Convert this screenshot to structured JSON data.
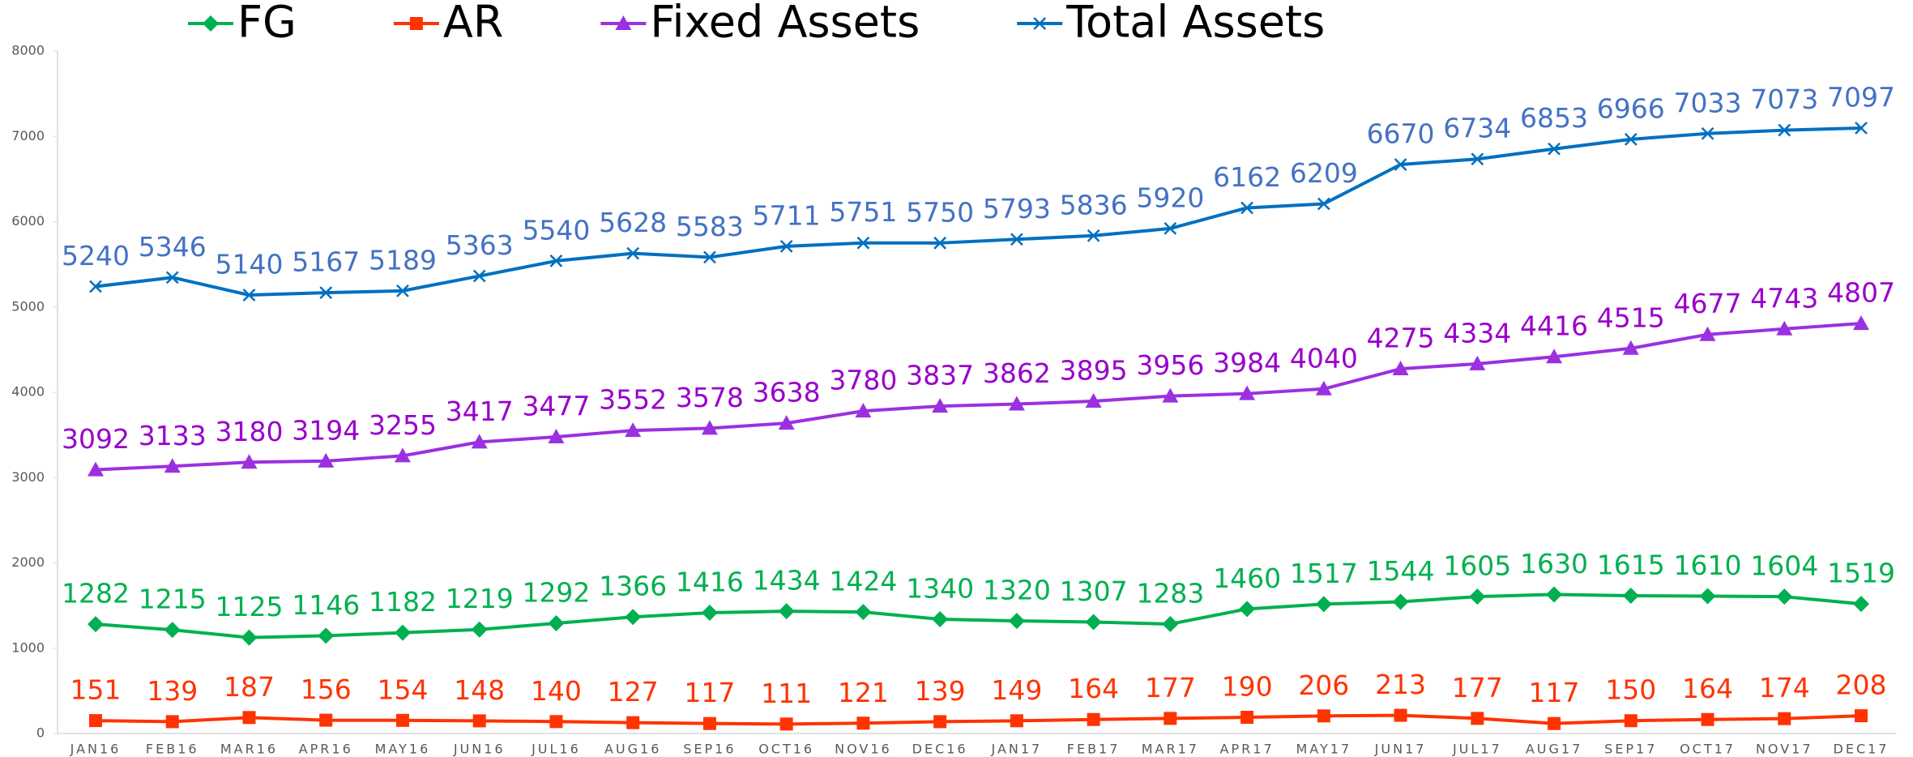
{
  "chart_data": {
    "type": "line",
    "categories": [
      "JAN16",
      "FEB16",
      "MAR16",
      "APR16",
      "MAY16",
      "JUN16",
      "JUL16",
      "AUG16",
      "SEP16",
      "OCT16",
      "NOV16",
      "DEC16",
      "JAN17",
      "FEB17",
      "MAR17",
      "APR17",
      "MAY17",
      "JUN17",
      "JUL17",
      "AUG17",
      "SEP17",
      "OCT17",
      "NOV17",
      "DEC17"
    ],
    "series": [
      {
        "name": "FG",
        "color": "#00b050",
        "label_color": "#00b050",
        "marker": "diamond",
        "values": [
          1282,
          1215,
          1125,
          1146,
          1182,
          1219,
          1292,
          1366,
          1416,
          1434,
          1424,
          1340,
          1320,
          1307,
          1283,
          1460,
          1517,
          1544,
          1605,
          1630,
          1615,
          1610,
          1604,
          1519
        ]
      },
      {
        "name": "AR",
        "color": "#ff3300",
        "label_color": "#ff3300",
        "marker": "square",
        "values": [
          151,
          139,
          187,
          156,
          154,
          148,
          140,
          127,
          117,
          111,
          121,
          139,
          149,
          164,
          177,
          190,
          206,
          213,
          177,
          117,
          150,
          164,
          174,
          208
        ]
      },
      {
        "name": "Fixed Assets",
        "color": "#9b30e0",
        "label_color": "#9900cc",
        "marker": "triangle",
        "values": [
          3092,
          3133,
          3180,
          3194,
          3255,
          3417,
          3477,
          3552,
          3578,
          3638,
          3780,
          3837,
          3862,
          3895,
          3956,
          3984,
          4040,
          4275,
          4334,
          4416,
          4515,
          4677,
          4743,
          4807
        ]
      },
      {
        "name": "Total Assets",
        "color": "#0070c0",
        "label_color": "#4472c4",
        "marker": "x",
        "values": [
          5240,
          5346,
          5140,
          5167,
          5189,
          5363,
          5540,
          5628,
          5583,
          5711,
          5751,
          5750,
          5793,
          5836,
          5920,
          6162,
          6209,
          6670,
          6734,
          6853,
          6966,
          7033,
          7073,
          7097
        ]
      }
    ],
    "ylim": [
      0,
      8000
    ],
    "yticks": [
      0,
      1000,
      2000,
      3000,
      4000,
      5000,
      6000,
      7000,
      8000
    ],
    "grid": false,
    "legend": "top"
  }
}
